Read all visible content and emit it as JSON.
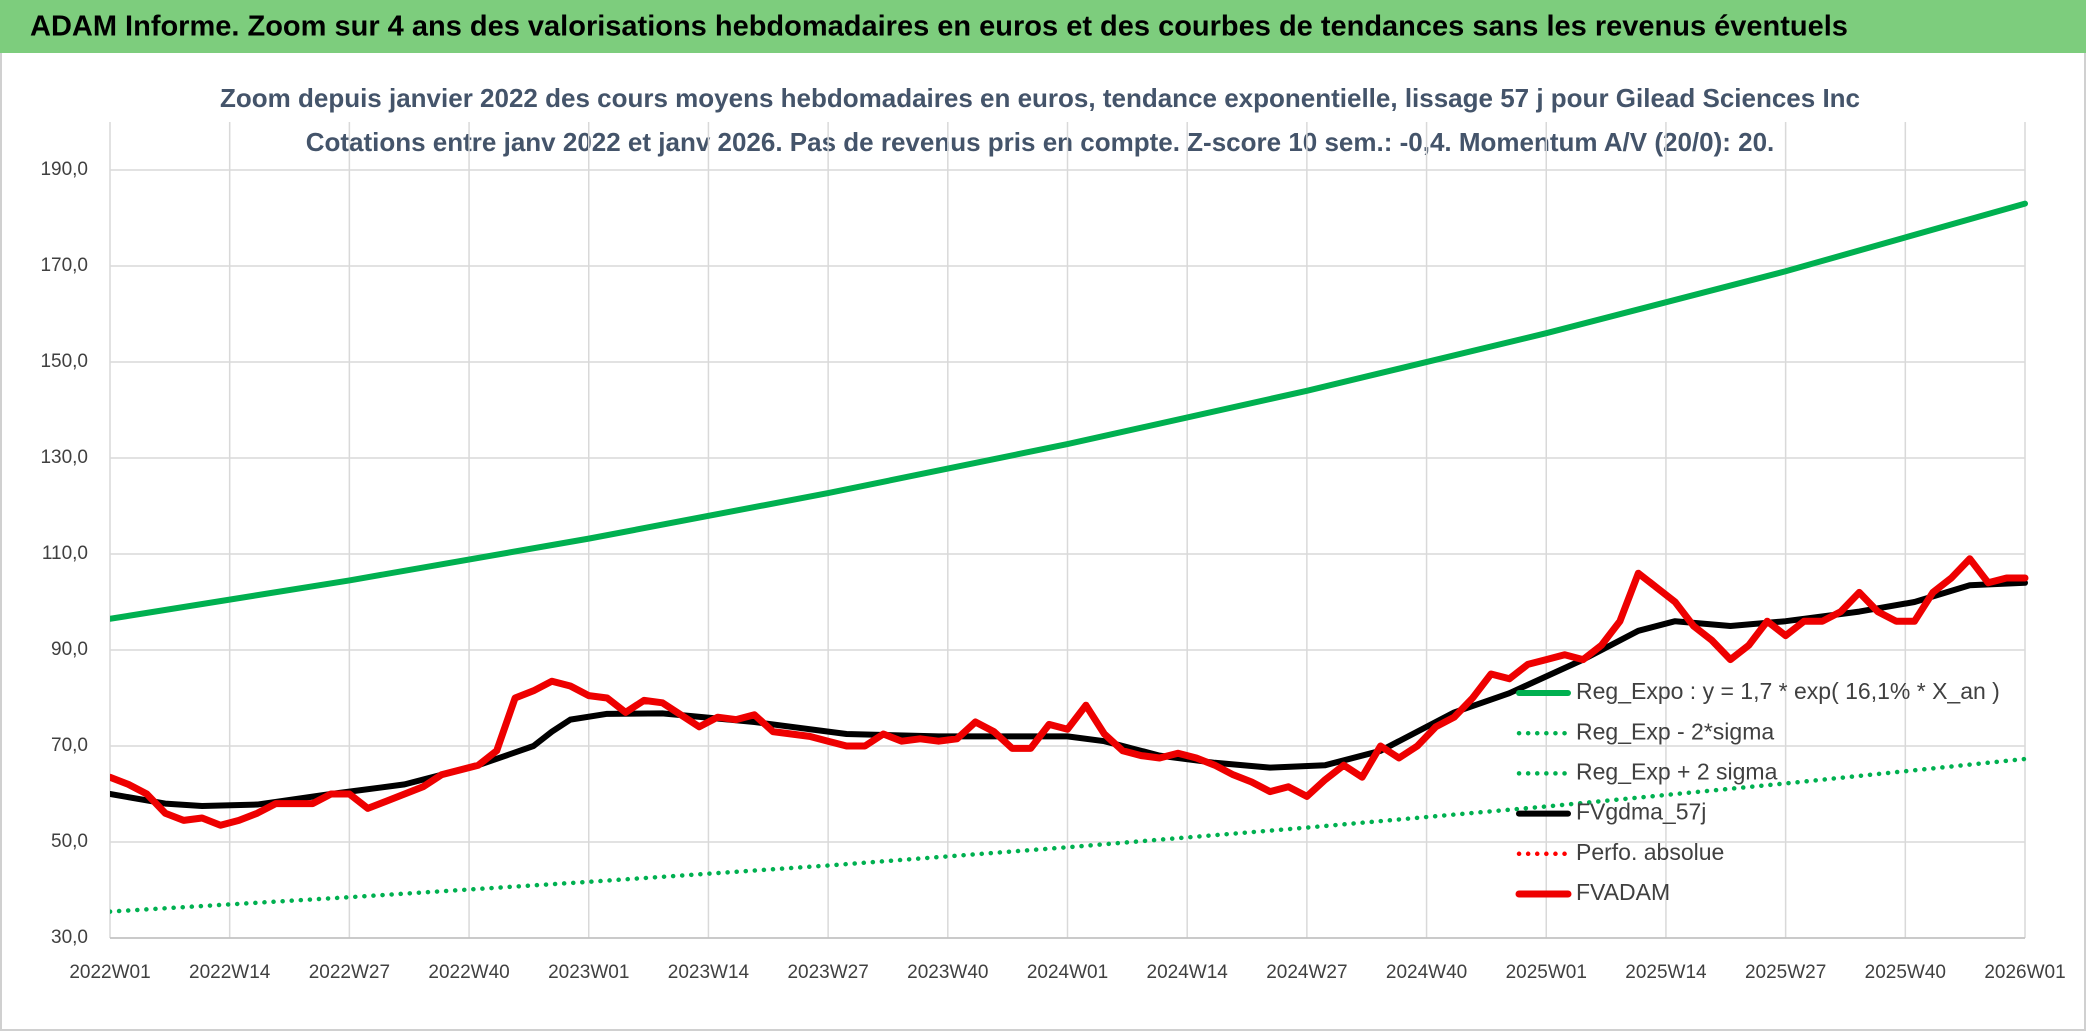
{
  "chart_data": {
    "type": "line",
    "title": "ADAM Informe. Zoom sur 4 ans des valorisations hebdomadaires en euros et des courbes de tendances sans les revenus éventuels",
    "subtitle": [
      "Zoom depuis janvier 2022 des cours moyens hebdomadaires en euros, tendance exponentielle, lissage 57 j pour Gilead Sciences Inc",
      "Cotations entre janv 2022 et janv 2026. Pas de revenus pris en compte. Z-score 10 sem.: -0,4. Momentum A/V (20/0): 20."
    ],
    "xlim": [
      0,
      208
    ],
    "xticks": [
      {
        "value": 0,
        "label": "2022W01"
      },
      {
        "value": 13,
        "label": "2022W14"
      },
      {
        "value": 26,
        "label": "2022W27"
      },
      {
        "value": 39,
        "label": "2022W40"
      },
      {
        "value": 52,
        "label": "2023W01"
      },
      {
        "value": 65,
        "label": "2023W14"
      },
      {
        "value": 78,
        "label": "2023W27"
      },
      {
        "value": 91,
        "label": "2023W40"
      },
      {
        "value": 104,
        "label": "2024W01"
      },
      {
        "value": 117,
        "label": "2024W14"
      },
      {
        "value": 130,
        "label": "2024W27"
      },
      {
        "value": 143,
        "label": "2024W40"
      },
      {
        "value": 156,
        "label": "2025W01"
      },
      {
        "value": 169,
        "label": "2025W14"
      },
      {
        "value": 182,
        "label": "2025W27"
      },
      {
        "value": 195,
        "label": "2025W40"
      },
      {
        "value": 208,
        "label": "2026W01"
      }
    ],
    "ylim": [
      30,
      200
    ],
    "yticks": [
      {
        "value": 30,
        "label": "30,0"
      },
      {
        "value": 50,
        "label": "50,0"
      },
      {
        "value": 70,
        "label": "70,0"
      },
      {
        "value": 90,
        "label": "90,0"
      },
      {
        "value": 110,
        "label": "110,0"
      },
      {
        "value": 130,
        "label": "130,0"
      },
      {
        "value": 150,
        "label": "150,0"
      },
      {
        "value": 170,
        "label": "170,0"
      },
      {
        "value": 190,
        "label": "190,0"
      }
    ],
    "grid": true,
    "series": [
      {
        "name": "Reg_Expo : y = 1,7 * exp( 16,1% *  X_an )",
        "color": "#00b050",
        "style": "solid",
        "x": [
          0,
          26,
          52,
          78,
          104,
          130,
          156,
          182,
          208
        ],
        "values": [
          96.5,
          104.5,
          113.2,
          122.7,
          132.9,
          144.0,
          156.0,
          168.9,
          183.0
        ]
      },
      {
        "name": "Reg_Exp - 2*sigma",
        "color": "#00b050",
        "style": "dotted",
        "x": [
          0,
          26,
          52,
          78,
          104,
          130,
          156,
          182,
          208
        ],
        "values": [
          35.5,
          38.5,
          41.7,
          45.1,
          48.9,
          53.0,
          57.4,
          62.2,
          67.3
        ]
      },
      {
        "name": "Reg_Exp + 2 sigma",
        "color": "#00b050",
        "style": "dotted",
        "x": [],
        "values": []
      },
      {
        "name": "FVgdma_57j",
        "color": "#000000",
        "style": "solid",
        "x": [
          0,
          6,
          10,
          16,
          24,
          32,
          40,
          46,
          48,
          50,
          54,
          60,
          70,
          80,
          90,
          104,
          108,
          114,
          120,
          126,
          132,
          138,
          146,
          152,
          160,
          166,
          170,
          176,
          182,
          190,
          196,
          202,
          208
        ],
        "values": [
          60,
          58,
          57.5,
          57.8,
          60,
          62,
          66,
          70,
          73,
          75.5,
          76.7,
          76.8,
          75,
          72.5,
          72,
          72,
          71,
          68,
          66.5,
          65.5,
          66,
          69,
          77,
          81,
          88,
          94,
          96,
          95,
          96,
          98,
          100,
          103.5,
          104
        ]
      },
      {
        "name": "Perfo. absolue",
        "color": "#ff0000",
        "style": "dotted",
        "x": [],
        "values": []
      },
      {
        "name": "FVADAM",
        "color": "#ee0000",
        "style": "bold",
        "x": [
          0,
          2,
          4,
          6,
          8,
          10,
          12,
          14,
          16,
          18,
          20,
          22,
          24,
          26,
          28,
          30,
          32,
          34,
          36,
          38,
          40,
          42,
          44,
          46,
          48,
          50,
          52,
          54,
          56,
          58,
          60,
          62,
          64,
          66,
          68,
          70,
          72,
          74,
          76,
          78,
          80,
          82,
          84,
          86,
          88,
          90,
          92,
          94,
          96,
          98,
          100,
          102,
          104,
          106,
          108,
          110,
          112,
          114,
          116,
          118,
          120,
          122,
          124,
          126,
          128,
          130,
          132,
          134,
          136,
          138,
          140,
          142,
          144,
          146,
          148,
          150,
          152,
          154,
          156,
          158,
          160,
          162,
          164,
          166,
          168,
          170,
          172,
          174,
          176,
          178,
          180,
          182,
          184,
          186,
          188,
          190,
          192,
          194,
          196,
          198,
          200,
          202,
          204,
          206,
          208
        ],
        "values": [
          63.5,
          62,
          60,
          56,
          54.5,
          55,
          53.5,
          54.5,
          56,
          58,
          58,
          58,
          60,
          60,
          57,
          58.5,
          60,
          61.5,
          64,
          65,
          66,
          69,
          80,
          81.5,
          83.5,
          82.5,
          80.5,
          80,
          77,
          79.5,
          79,
          76.5,
          74,
          76,
          75.5,
          76.5,
          73,
          72.5,
          72,
          71,
          70,
          70,
          72.5,
          71,
          71.5,
          71,
          71.5,
          75,
          73,
          69.5,
          69.5,
          74.5,
          73.5,
          78.5,
          72.5,
          69,
          68,
          67.5,
          68.5,
          67.5,
          66,
          64,
          62.5,
          60.5,
          61.5,
          59.5,
          63,
          66,
          63.5,
          70,
          67.5,
          70,
          74,
          76,
          80,
          85,
          84,
          87,
          88,
          89,
          88,
          91,
          96,
          106,
          103,
          100,
          95,
          92,
          88,
          91,
          96,
          93,
          96,
          96,
          98,
          102,
          98,
          96,
          96,
          102,
          105,
          109,
          104,
          105,
          105
        ]
      }
    ]
  }
}
